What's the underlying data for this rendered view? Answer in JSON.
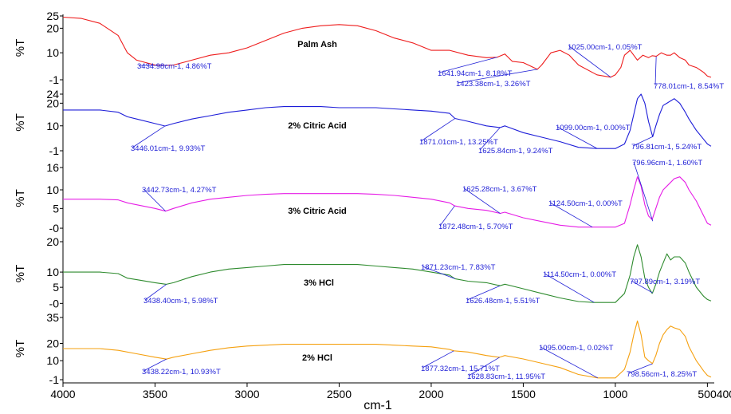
{
  "chart_data": [
    {
      "type": "line",
      "title": "Palm Ash",
      "ylabel": "%T",
      "color": "#ee1c1c",
      "ylim": [
        -1,
        25
      ],
      "yticks": [
        "25",
        "20",
        "10",
        "-1"
      ],
      "ytick_values": [
        25,
        20,
        10,
        -1
      ],
      "x": [
        4000,
        3900,
        3800,
        3700,
        3650,
        3600,
        3550,
        3500,
        3434.98,
        3400,
        3350,
        3300,
        3200,
        3100,
        3000,
        2900,
        2800,
        2700,
        2600,
        2500,
        2400,
        2300,
        2200,
        2100,
        2000,
        1900,
        1800,
        1700,
        1641.94,
        1600,
        1560,
        1500,
        1423.38,
        1400,
        1350,
        1300,
        1250,
        1200,
        1100,
        1025,
        1000,
        970,
        950,
        920,
        900,
        880,
        850,
        820,
        800,
        778.01,
        750,
        720,
        700,
        680,
        650,
        620,
        600,
        560,
        520,
        500,
        480
      ],
      "y": [
        24.5,
        24,
        22,
        17,
        10,
        7,
        6,
        5,
        4.86,
        5,
        6,
        7,
        9,
        10,
        12,
        15,
        18,
        20,
        21,
        21.5,
        21,
        19,
        16,
        14,
        11,
        11,
        9,
        8,
        8.18,
        9.5,
        6.5,
        6,
        3.26,
        5,
        10,
        11,
        9,
        5,
        1,
        0.05,
        1,
        4,
        9,
        11,
        9,
        7,
        9,
        8,
        8.8,
        8.54,
        10,
        9,
        9,
        10,
        8,
        7,
        5,
        4,
        2,
        0.5,
        0
      ],
      "annotations": [
        "3434.98cm-1, 4.86%T",
        "1641.94cm-1, 8.18%T",
        "1423.38cm-1, 3.26%T",
        "1025.00cm-1, 0.05%T",
        "778.01cm-1, 8.54%T"
      ]
    },
    {
      "type": "line",
      "title": "2% Citric Acid",
      "ylabel": "%T",
      "color": "#1d1dd8",
      "ylim": [
        -1,
        24
      ],
      "yticks": [
        "24",
        "20",
        "10",
        "-1"
      ],
      "ytick_values": [
        24,
        20,
        10,
        -1
      ],
      "x": [
        4000,
        3900,
        3800,
        3700,
        3650,
        3600,
        3500,
        3446.01,
        3400,
        3300,
        3200,
        3100,
        3000,
        2900,
        2800,
        2700,
        2600,
        2500,
        2400,
        2300,
        2200,
        2100,
        2000,
        1900,
        1871.01,
        1800,
        1700,
        1625.84,
        1600,
        1500,
        1400,
        1300,
        1200,
        1099,
        1000,
        950,
        920,
        900,
        880,
        860,
        840,
        820,
        800,
        796.81,
        780,
        760,
        740,
        720,
        700,
        680,
        650,
        620,
        600,
        560,
        520,
        500,
        480
      ],
      "y": [
        17,
        17,
        17,
        16,
        14,
        13,
        11,
        9.93,
        11,
        13,
        14.5,
        16,
        17,
        18,
        18.5,
        18.5,
        18.5,
        18,
        18,
        18,
        17.5,
        17,
        16.5,
        15.5,
        13.25,
        12,
        10,
        9.24,
        10,
        7,
        5,
        3,
        0.5,
        0,
        0,
        2,
        8,
        15,
        22,
        24,
        20,
        12,
        6,
        5.24,
        10,
        15,
        19,
        20,
        21,
        22,
        20,
        16,
        13,
        8,
        4,
        2,
        1
      ],
      "annotations": [
        "3446.01cm-1, 9.93%T",
        "1871.01cm-1, 13.25%T",
        "1625.84cm-1, 9.24%T",
        "1099.00cm-1, 0.00%T",
        "796.81cm-1, 5.24%T"
      ]
    },
    {
      "type": "line",
      "title": "3% Citric Acid",
      "ylabel": "%T",
      "color": "#e61ce6",
      "ylim": [
        -0.5,
        16
      ],
      "yticks": [
        "16",
        "10",
        "5",
        "-0"
      ],
      "ytick_values": [
        16,
        10,
        5,
        -0.3
      ],
      "x": [
        4000,
        3900,
        3800,
        3700,
        3650,
        3600,
        3500,
        3442.73,
        3400,
        3300,
        3200,
        3100,
        3000,
        2900,
        2800,
        2700,
        2600,
        2500,
        2400,
        2300,
        2200,
        2100,
        2000,
        1900,
        1872.48,
        1800,
        1700,
        1625.28,
        1600,
        1500,
        1400,
        1300,
        1200,
        1124.5,
        1000,
        950,
        920,
        900,
        880,
        860,
        840,
        820,
        800,
        780,
        760,
        740,
        720,
        700,
        680,
        650,
        620,
        600,
        560,
        520,
        500,
        480
      ],
      "y": [
        7.5,
        7.5,
        7.5,
        7.3,
        6.5,
        6,
        5,
        4.27,
        5,
        6.5,
        7.5,
        8,
        8.5,
        8.8,
        9,
        9,
        9,
        9,
        9,
        8.8,
        8.5,
        8,
        7.5,
        6.5,
        5.7,
        5,
        4.5,
        3.67,
        4,
        2.5,
        1.5,
        0.5,
        0,
        0,
        0,
        1,
        6,
        10,
        13.5,
        11,
        6,
        3,
        2,
        5,
        8,
        10,
        11,
        12,
        13,
        13.5,
        12,
        10,
        7,
        3,
        1,
        0.5
      ],
      "annotations": [
        "3442.73cm-1, 4.27%T",
        "1625.28cm-1, 3.67%T",
        "1872.48cm-1, 5.70%T",
        "1124.50cm-1, 0.00%T",
        "796.96cm-1, 1.60%T"
      ]
    },
    {
      "type": "line",
      "title": "3% HCl",
      "ylabel": "%T",
      "color": "#2e8b2e",
      "ylim": [
        -1,
        20
      ],
      "yticks": [
        "20",
        "10",
        "5",
        "-0"
      ],
      "ytick_values": [
        20,
        10,
        5,
        -0.3
      ],
      "x": [
        4000,
        3900,
        3800,
        3700,
        3650,
        3600,
        3500,
        3438.4,
        3400,
        3300,
        3200,
        3100,
        3000,
        2900,
        2800,
        2700,
        2600,
        2500,
        2400,
        2300,
        2200,
        2100,
        2000,
        1900,
        1871.23,
        1800,
        1700,
        1626.48,
        1600,
        1500,
        1400,
        1300,
        1200,
        1114.5,
        1000,
        950,
        920,
        900,
        880,
        860,
        840,
        820,
        800,
        797.89,
        780,
        760,
        740,
        720,
        700,
        680,
        650,
        620,
        600,
        560,
        520,
        500,
        480
      ],
      "y": [
        10,
        10,
        10,
        9.5,
        8,
        7.5,
        6.5,
        5.98,
        6.5,
        8.5,
        10,
        11,
        11.5,
        12,
        12.5,
        12.5,
        12.5,
        12.5,
        12.5,
        12,
        11.5,
        11,
        10,
        9,
        7.83,
        7,
        6.5,
        5.51,
        6,
        4.5,
        3,
        1.5,
        0.3,
        0,
        0,
        3,
        9,
        15,
        19,
        15,
        8,
        5,
        3,
        3.19,
        6,
        10,
        13,
        16,
        14,
        15,
        15,
        13,
        10,
        5,
        2,
        1,
        0.5
      ],
      "annotations": [
        "3438.40cm-1, 5.98%T",
        "1871.23cm-1, 7.83%T",
        "1114.50cm-1, 0.00%T",
        "1626.48cm-1, 5.51%T",
        "797.89cm-1, 3.19%T"
      ]
    },
    {
      "type": "line",
      "title": "2% HCl",
      "ylabel": "%T",
      "color": "#f5a00f",
      "ylim": [
        -1,
        35
      ],
      "yticks": [
        "35",
        "20",
        "10",
        "-1"
      ],
      "ytick_values": [
        35,
        20,
        10,
        -1
      ],
      "x": [
        4000,
        3900,
        3800,
        3700,
        3600,
        3500,
        3438.22,
        3400,
        3300,
        3200,
        3100,
        3000,
        2900,
        2800,
        2700,
        2600,
        2500,
        2400,
        2300,
        2200,
        2100,
        2000,
        1900,
        1877.32,
        1800,
        1700,
        1628.83,
        1600,
        1500,
        1400,
        1300,
        1200,
        1095,
        1000,
        950,
        920,
        900,
        880,
        860,
        840,
        820,
        800,
        798.56,
        780,
        760,
        740,
        720,
        700,
        680,
        650,
        620,
        600,
        560,
        520,
        500,
        480
      ],
      "y": [
        17,
        17,
        17,
        16,
        14,
        12,
        10.93,
        12,
        14,
        16,
        17.5,
        18.5,
        19,
        19.5,
        19.5,
        19.5,
        19.5,
        19.5,
        19.5,
        19,
        18.5,
        18,
        16.5,
        15.71,
        15,
        13,
        11.95,
        13,
        11,
        8.5,
        6,
        2,
        0.02,
        0,
        5,
        15,
        25,
        33,
        25,
        12,
        10,
        8.5,
        8.25,
        13,
        20,
        25,
        28,
        30,
        29,
        28,
        24,
        18,
        10,
        4,
        1.5,
        0.5
      ],
      "annotations": [
        "3438.22cm-1, 10.93%T",
        "1877.32cm-1, 15.71%T",
        "1628.83cm-1, 11.95%T",
        "1095.00cm-1, 0.02%T",
        "798.56cm-1, 8.25%T"
      ]
    }
  ],
  "x_axis": {
    "label": "cm-1",
    "range": [
      4000,
      480
    ],
    "ticks": [
      {
        "v": 4000,
        "t": "4000"
      },
      {
        "v": 3500,
        "t": "3500"
      },
      {
        "v": 3000,
        "t": "3000"
      },
      {
        "v": 2500,
        "t": "2500"
      },
      {
        "v": 2000,
        "t": "2000"
      },
      {
        "v": 1500,
        "t": "1500"
      },
      {
        "v": 1000,
        "t": "1000"
      },
      {
        "v": 500,
        "t": "500400"
      }
    ]
  }
}
